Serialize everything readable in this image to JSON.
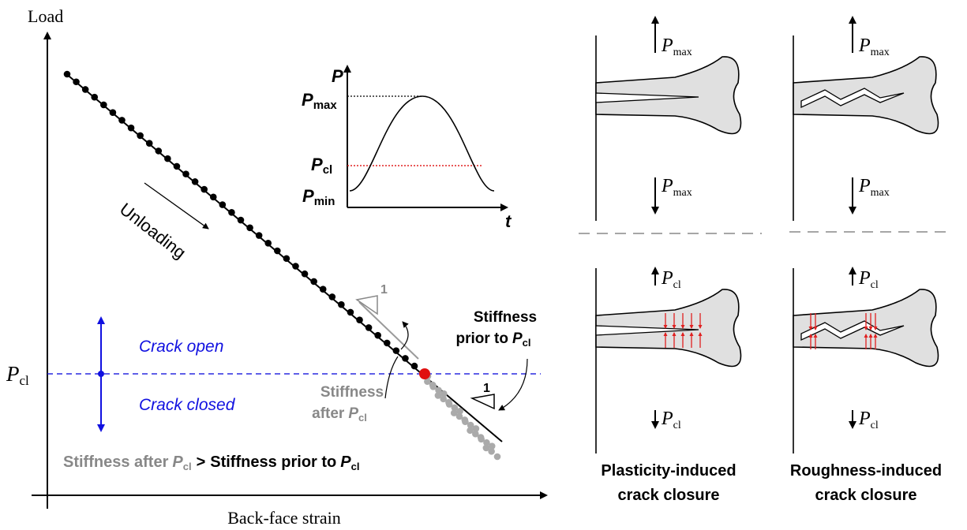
{
  "left": {
    "y_axis_label": "Load",
    "x_axis_label": "Back-face strain",
    "unloading": "Unloading",
    "crack_open": "Crack open",
    "crack_closed": "Crack closed",
    "pcl": {
      "symbol": "P",
      "sub": "cl"
    },
    "slope_gray": "1",
    "slope_black": "1",
    "stiffness_prior": {
      "line1": "Stiffness",
      "line2": "prior to",
      "symbol": "P",
      "sub": "cl"
    },
    "stiffness_after": {
      "line1": "Stiffness",
      "line2": "after",
      "symbol": "P",
      "sub": "cl"
    },
    "comparison": {
      "part1": "Stiffness after",
      "symbol1": "P",
      "sub1": "cl",
      "op": ">",
      "part2": "Stiffness prior to",
      "symbol2": "P",
      "sub2": "cl"
    }
  },
  "inset": {
    "y_label": "P",
    "x_label": "t",
    "pmax": {
      "symbol": "P",
      "sub": "max"
    },
    "pcl": {
      "symbol": "P",
      "sub": "cl"
    },
    "pmin": {
      "symbol": "P",
      "sub": "min"
    }
  },
  "columns": [
    {
      "upper": {
        "top": {
          "symbol": "P",
          "sub": "max"
        },
        "bottom": {
          "symbol": "P",
          "sub": "max"
        }
      },
      "lower": {
        "top": {
          "symbol": "P",
          "sub": "cl"
        },
        "bottom": {
          "symbol": "P",
          "sub": "cl"
        }
      },
      "caption": [
        "Plasticity-induced",
        "crack closure"
      ]
    },
    {
      "upper": {
        "top": {
          "symbol": "P",
          "sub": "max"
        },
        "bottom": {
          "symbol": "P",
          "sub": "max"
        }
      },
      "lower": {
        "top": {
          "symbol": "P",
          "sub": "cl"
        },
        "bottom": {
          "symbol": "P",
          "sub": "cl"
        }
      },
      "caption": [
        "Roughness-induced",
        "crack closure"
      ]
    }
  ]
}
